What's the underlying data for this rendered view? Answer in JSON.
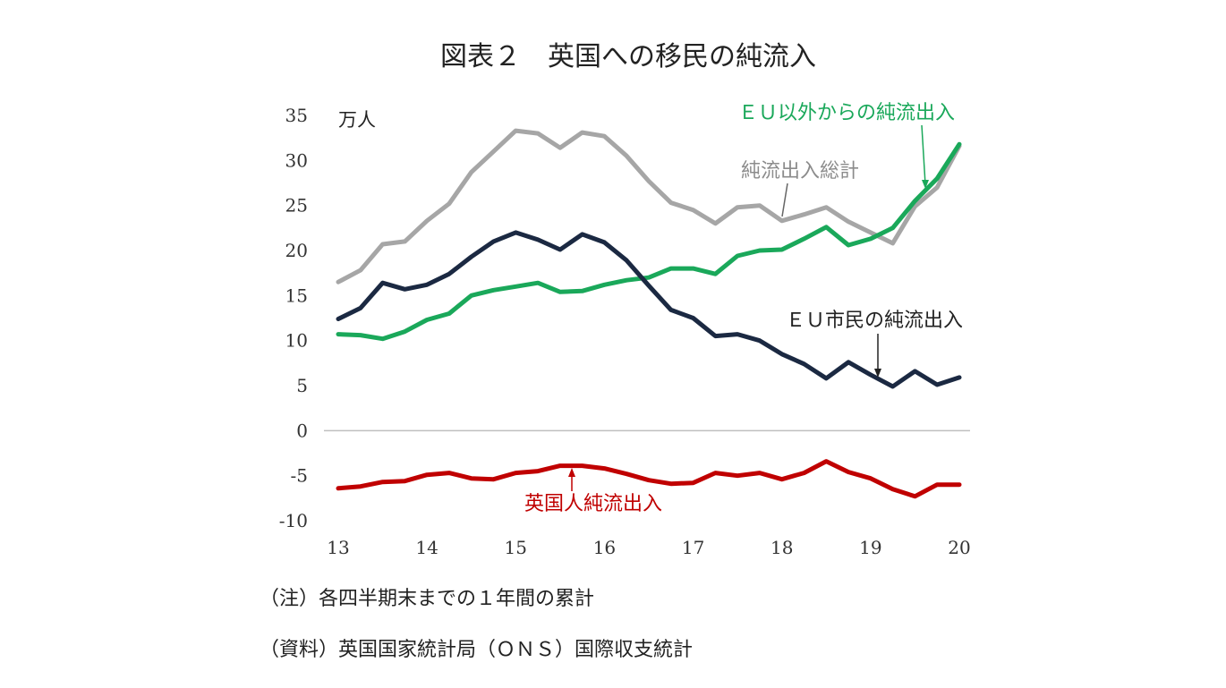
{
  "chart_data": {
    "type": "line",
    "title": "図表２　英国への移民の純流入",
    "unit_label": "万人",
    "ylim": [
      -10,
      35
    ],
    "yticks": [
      "35",
      "30",
      "25",
      "20",
      "15",
      "10",
      "5",
      "0",
      "-5",
      "-10"
    ],
    "xlim": [
      13,
      20
    ],
    "xticks": [
      "13",
      "14",
      "15",
      "16",
      "17",
      "18",
      "19",
      "20"
    ],
    "x": [
      13,
      13.25,
      13.5,
      13.75,
      14,
      14.25,
      14.5,
      14.75,
      15,
      15.25,
      15.5,
      15.75,
      16,
      16.25,
      16.5,
      16.75,
      17,
      17.25,
      17.5,
      17.75,
      18,
      18.25,
      18.5,
      18.75,
      19,
      19.25,
      19.5,
      19.75,
      20
    ],
    "series": [
      {
        "name": "純流入総計",
        "color": "#a6a6a6",
        "values": [
          16.5,
          17.8,
          20.7,
          21.0,
          23.3,
          25.2,
          28.7,
          31.0,
          33.3,
          33.0,
          31.4,
          33.1,
          32.7,
          30.5,
          27.7,
          25.3,
          24.5,
          23.0,
          24.8,
          25.0,
          23.3,
          24.0,
          24.8,
          23.2,
          22.0,
          20.8,
          24.9,
          27.0,
          31.6
        ]
      },
      {
        "name": "ＥＵ以外からの純流出入",
        "color": "#1aa85a",
        "values": [
          10.7,
          10.6,
          10.2,
          11.0,
          12.3,
          13.0,
          15.0,
          15.6,
          16.0,
          16.4,
          15.4,
          15.5,
          16.2,
          16.7,
          17.0,
          18.0,
          18.0,
          17.4,
          19.4,
          20.0,
          20.1,
          21.3,
          22.6,
          20.6,
          21.3,
          22.5,
          25.5,
          28.0,
          31.8
        ]
      },
      {
        "name": "ＥＵ市民の純流出入",
        "color": "#1b2942",
        "values": [
          12.4,
          13.6,
          16.4,
          15.7,
          16.2,
          17.4,
          19.3,
          21.0,
          22.0,
          21.2,
          20.1,
          21.8,
          20.9,
          18.9,
          16.1,
          13.4,
          12.5,
          10.5,
          10.7,
          10.0,
          8.5,
          7.4,
          5.8,
          7.6,
          6.2,
          4.9,
          6.6,
          5.1,
          5.9
        ]
      },
      {
        "name": "英国人純流出入",
        "color": "#c00000",
        "values": [
          -6.4,
          -6.2,
          -5.7,
          -5.6,
          -4.9,
          -4.7,
          -5.3,
          -5.4,
          -4.7,
          -4.5,
          -3.9,
          -3.9,
          -4.2,
          -4.8,
          -5.5,
          -5.9,
          -5.8,
          -4.7,
          -5.0,
          -4.7,
          -5.4,
          -4.7,
          -3.4,
          -4.6,
          -5.3,
          -6.5,
          -7.3,
          -6.0,
          -6.0
        ]
      }
    ],
    "annotations": {
      "total": "純流出入総計",
      "non_eu": "ＥＵ以外からの純流出入",
      "eu": "ＥＵ市民の純流出入",
      "uk": "英国人純流出入"
    }
  },
  "notes": {
    "note1": "（注）各四半期末までの１年間の累計",
    "source": "（資料）英国国家統計局（ＯＮＳ）国際収支統計"
  }
}
